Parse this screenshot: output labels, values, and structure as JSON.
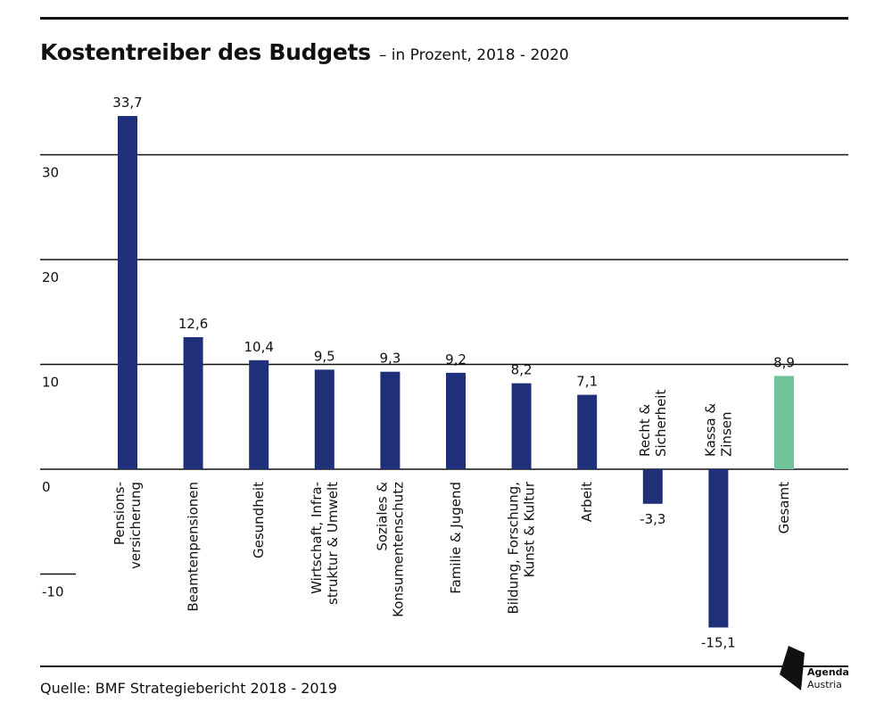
{
  "header": {
    "title": "Kostentreiber des Budgets",
    "subtitle": "– in Prozent, 2018 - 2020"
  },
  "footer": {
    "source": "Quelle: BMF Strategiebericht 2018 - 2019",
    "logo_line1": "Agenda",
    "logo_line2": "Austria"
  },
  "colors": {
    "bar": "#1f2f7a",
    "total_bar": "#6fc49a",
    "gridline": "#111111"
  },
  "chart_data": {
    "type": "bar",
    "title": "Kostentreiber des Budgets",
    "subtitle": "– in Prozent, 2018 - 2020",
    "xlabel": "",
    "ylabel": "",
    "ylim": [
      -15.1,
      33.7
    ],
    "yticks": [
      30,
      20,
      10,
      0,
      -10
    ],
    "ytick_labels": [
      "30",
      "20",
      "10",
      "0",
      "-10"
    ],
    "grid": true,
    "categories": [
      [
        "Pensions-",
        "versicherung"
      ],
      [
        "Beamtenpensionen"
      ],
      [
        "Gesundheit"
      ],
      [
        "Wirtschaft, Infra-",
        "struktur & Umwelt"
      ],
      [
        "Soziales &",
        "Konsumentenschutz"
      ],
      [
        "Familie & Jugend"
      ],
      [
        "Bildung, Forschung,",
        "Kunst & Kultur"
      ],
      [
        "Arbeit"
      ],
      [
        "Recht &",
        "Sicherheit"
      ],
      [
        "Kassa &",
        "Zinsen"
      ],
      [
        "Gesamt"
      ]
    ],
    "values": [
      33.7,
      12.6,
      10.4,
      9.5,
      9.3,
      9.2,
      8.2,
      7.1,
      -3.3,
      -15.1,
      8.9
    ],
    "value_labels": [
      "33,7",
      "12,6",
      "10,4",
      "9,5",
      "9,3",
      "9,2",
      "8,2",
      "7,1",
      "-3,3",
      "-15,1",
      "8,9"
    ],
    "highlight_index": 10
  }
}
